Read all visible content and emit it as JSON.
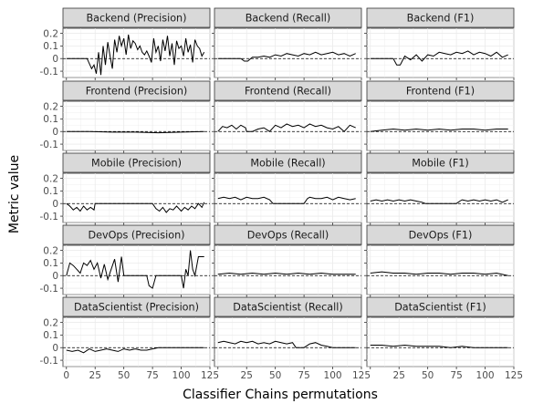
{
  "chart_data": {
    "type": "line",
    "xlabel": "Classifier Chains permutations",
    "ylabel": "Metric value",
    "xlim": [
      -3,
      125
    ],
    "ylim": [
      -0.15,
      0.24
    ],
    "x_ticks": [
      0,
      25,
      50,
      75,
      100,
      125
    ],
    "x_tick_labels": [
      "0",
      "25",
      "50",
      "75",
      "100",
      "125"
    ],
    "y_ticks": [
      -0.1,
      0,
      0.1,
      0.2
    ],
    "y_tick_labels": [
      "-0.1",
      "0",
      "0.1",
      "0.2"
    ],
    "reference_line": 0,
    "grid": true,
    "legend": "none",
    "rows": [
      "Backend",
      "Frontend",
      "Mobile",
      "DevOps",
      "DataScientist"
    ],
    "columns": [
      "Precision",
      "Recall",
      "F1"
    ],
    "panels": [
      {
        "title": "Backend (Precision)",
        "x": [
          0,
          10,
          18,
          22,
          24,
          26,
          28,
          30,
          32,
          34,
          36,
          38,
          40,
          42,
          44,
          46,
          48,
          50,
          52,
          54,
          56,
          58,
          60,
          62,
          64,
          66,
          68,
          70,
          72,
          74,
          76,
          78,
          80,
          82,
          84,
          86,
          88,
          90,
          92,
          94,
          96,
          98,
          100,
          102,
          104,
          106,
          108,
          110,
          112,
          114,
          116,
          118,
          120
        ],
        "y": [
          0,
          0,
          0,
          -0.08,
          -0.05,
          -0.12,
          0.05,
          -0.13,
          0.1,
          -0.05,
          0.13,
          0.02,
          -0.08,
          0.15,
          0.05,
          0.18,
          0.1,
          0.16,
          0.03,
          0.19,
          0.08,
          0.14,
          0.12,
          0.07,
          0.1,
          0.05,
          0.03,
          0.06,
          0.02,
          -0.03,
          0.16,
          0.05,
          0.1,
          -0.02,
          0.15,
          0.06,
          0.18,
          0.02,
          0.12,
          -0.05,
          0.14,
          0.08,
          0.1,
          0.02,
          0.16,
          0.05,
          0.11,
          -0.03,
          0.15,
          0.1,
          0.08,
          0.02,
          0.05
        ]
      },
      {
        "title": "Backend (Recall)",
        "x": [
          0,
          20,
          23,
          26,
          30,
          35,
          40,
          45,
          50,
          55,
          60,
          65,
          70,
          75,
          80,
          85,
          90,
          95,
          100,
          105,
          110,
          115,
          120
        ],
        "y": [
          0,
          0,
          -0.02,
          -0.02,
          0.01,
          0.01,
          0.02,
          0.01,
          0.03,
          0.02,
          0.04,
          0.03,
          0.02,
          0.04,
          0.03,
          0.05,
          0.03,
          0.04,
          0.05,
          0.03,
          0.04,
          0.02,
          0.04
        ]
      },
      {
        "title": "Backend (F1)",
        "x": [
          0,
          20,
          23,
          26,
          30,
          35,
          40,
          45,
          50,
          55,
          60,
          65,
          70,
          75,
          80,
          85,
          90,
          95,
          100,
          105,
          110,
          115,
          120
        ],
        "y": [
          0,
          0,
          -0.05,
          -0.05,
          0.02,
          -0.01,
          0.03,
          -0.02,
          0.03,
          0.02,
          0.05,
          0.04,
          0.03,
          0.05,
          0.04,
          0.06,
          0.03,
          0.05,
          0.04,
          0.02,
          0.05,
          0.01,
          0.03
        ]
      },
      {
        "title": "Frontend (Precision)",
        "x": [
          0,
          20,
          40,
          60,
          80,
          100,
          120
        ],
        "y": [
          0,
          0,
          -0.005,
          -0.005,
          -0.01,
          -0.005,
          0
        ]
      },
      {
        "title": "Frontend (Recall)",
        "x": [
          0,
          4,
          8,
          12,
          16,
          20,
          24,
          25,
          30,
          35,
          40,
          45,
          50,
          55,
          60,
          65,
          70,
          75,
          80,
          85,
          90,
          95,
          100,
          105,
          110,
          115,
          120
        ],
        "y": [
          0,
          0.04,
          0.03,
          0.05,
          0.02,
          0.05,
          0.03,
          0,
          0,
          0.02,
          0.03,
          0,
          0.05,
          0.03,
          0.06,
          0.04,
          0.05,
          0.03,
          0.06,
          0.04,
          0.05,
          0.03,
          0.02,
          0.04,
          0,
          0.05,
          0.03
        ]
      },
      {
        "title": "Frontend (F1)",
        "x": [
          0,
          10,
          20,
          30,
          40,
          50,
          60,
          70,
          80,
          90,
          100,
          110,
          120
        ],
        "y": [
          0,
          0.01,
          0.02,
          0.01,
          0.02,
          0.01,
          0.02,
          0.01,
          0.02,
          0.02,
          0.01,
          0.02,
          0.02
        ]
      },
      {
        "title": "Mobile (Precision)",
        "x": [
          0,
          3,
          6,
          9,
          12,
          15,
          18,
          21,
          24,
          25,
          30,
          40,
          50,
          60,
          70,
          75,
          78,
          81,
          84,
          87,
          90,
          93,
          96,
          100,
          103,
          106,
          109,
          112,
          115,
          118,
          120
        ],
        "y": [
          0,
          -0.02,
          -0.05,
          -0.03,
          -0.06,
          -0.02,
          -0.05,
          -0.03,
          -0.05,
          0,
          0,
          0,
          0,
          0,
          0,
          0,
          -0.04,
          -0.06,
          -0.03,
          -0.07,
          -0.04,
          -0.05,
          -0.02,
          -0.06,
          -0.03,
          -0.05,
          -0.02,
          -0.04,
          0,
          -0.03,
          0.01
        ]
      },
      {
        "title": "Mobile (Recall)",
        "x": [
          0,
          5,
          10,
          15,
          20,
          25,
          30,
          35,
          40,
          45,
          48,
          50,
          60,
          70,
          75,
          78,
          80,
          85,
          90,
          95,
          100,
          105,
          110,
          115,
          120
        ],
        "y": [
          0.04,
          0.05,
          0.04,
          0.05,
          0.03,
          0.05,
          0.04,
          0.04,
          0.05,
          0.03,
          0,
          0,
          0,
          0,
          0,
          0.04,
          0.05,
          0.04,
          0.04,
          0.05,
          0.03,
          0.05,
          0.04,
          0.03,
          0.04
        ]
      },
      {
        "title": "Mobile (F1)",
        "x": [
          0,
          5,
          10,
          15,
          20,
          25,
          30,
          35,
          40,
          45,
          48,
          50,
          60,
          70,
          75,
          78,
          80,
          85,
          90,
          95,
          100,
          105,
          110,
          115,
          120
        ],
        "y": [
          0.02,
          0.03,
          0.02,
          0.03,
          0.02,
          0.03,
          0.02,
          0.03,
          0.02,
          0.01,
          0,
          0,
          0,
          0,
          0,
          0.02,
          0.03,
          0.02,
          0.03,
          0.02,
          0.03,
          0.02,
          0.03,
          0.01,
          0.03
        ]
      },
      {
        "title": "DevOps (Precision)",
        "x": [
          0,
          3,
          6,
          9,
          12,
          15,
          18,
          21,
          24,
          27,
          30,
          33,
          36,
          39,
          42,
          45,
          48,
          50,
          55,
          60,
          65,
          70,
          72,
          75,
          78,
          80,
          85,
          90,
          95,
          100,
          102,
          104,
          106,
          108,
          110,
          112,
          115,
          120
        ],
        "y": [
          0,
          0.1,
          0.08,
          0.05,
          0.02,
          0.1,
          0.08,
          0.12,
          0.05,
          0.1,
          -0.02,
          0.09,
          -0.03,
          0.05,
          0.13,
          -0.05,
          0.15,
          0,
          0,
          0,
          0,
          0,
          -0.08,
          -0.1,
          0,
          0,
          0,
          0,
          0,
          0,
          -0.1,
          0.05,
          0,
          0.2,
          0.05,
          0,
          0.15,
          0.15
        ]
      },
      {
        "title": "DevOps (Recall)",
        "x": [
          0,
          10,
          20,
          30,
          40,
          50,
          60,
          70,
          80,
          90,
          100,
          110,
          120
        ],
        "y": [
          0.01,
          0.02,
          0.01,
          0.02,
          0.01,
          0.02,
          0.01,
          0.02,
          0.01,
          0.02,
          0.01,
          0.01,
          0.01
        ]
      },
      {
        "title": "DevOps (F1)",
        "x": [
          0,
          10,
          20,
          30,
          40,
          50,
          60,
          70,
          80,
          90,
          100,
          110,
          120
        ],
        "y": [
          0.02,
          0.03,
          0.02,
          0.02,
          0.01,
          0.02,
          0.02,
          0.01,
          0.02,
          0.02,
          0.01,
          0.02,
          0
        ]
      },
      {
        "title": "DataScientist (Precision)",
        "x": [
          0,
          5,
          10,
          15,
          20,
          25,
          30,
          35,
          40,
          45,
          50,
          55,
          60,
          65,
          70,
          75,
          80,
          90,
          100,
          110,
          120
        ],
        "y": [
          -0.02,
          -0.03,
          -0.02,
          -0.04,
          -0.01,
          -0.03,
          -0.02,
          -0.01,
          -0.02,
          -0.03,
          -0.01,
          -0.02,
          -0.01,
          -0.02,
          -0.02,
          -0.01,
          0,
          0,
          0,
          0,
          0
        ]
      },
      {
        "title": "DataScientist (Recall)",
        "x": [
          0,
          5,
          10,
          15,
          20,
          25,
          30,
          35,
          40,
          45,
          50,
          55,
          60,
          65,
          68,
          70,
          75,
          80,
          85,
          90,
          95,
          100,
          110,
          120
        ],
        "y": [
          0.04,
          0.05,
          0.04,
          0.03,
          0.05,
          0.04,
          0.05,
          0.03,
          0.04,
          0.03,
          0.05,
          0.04,
          0.03,
          0.04,
          0,
          0,
          0,
          0.03,
          0.04,
          0.02,
          0.01,
          0,
          0,
          0
        ]
      },
      {
        "title": "DataScientist (F1)",
        "x": [
          0,
          10,
          20,
          30,
          40,
          50,
          60,
          70,
          80,
          90,
          100,
          110,
          120
        ],
        "y": [
          0.02,
          0.02,
          0.01,
          0.02,
          0.01,
          0.01,
          0.01,
          0,
          0.01,
          0,
          0,
          0,
          0
        ]
      }
    ]
  }
}
